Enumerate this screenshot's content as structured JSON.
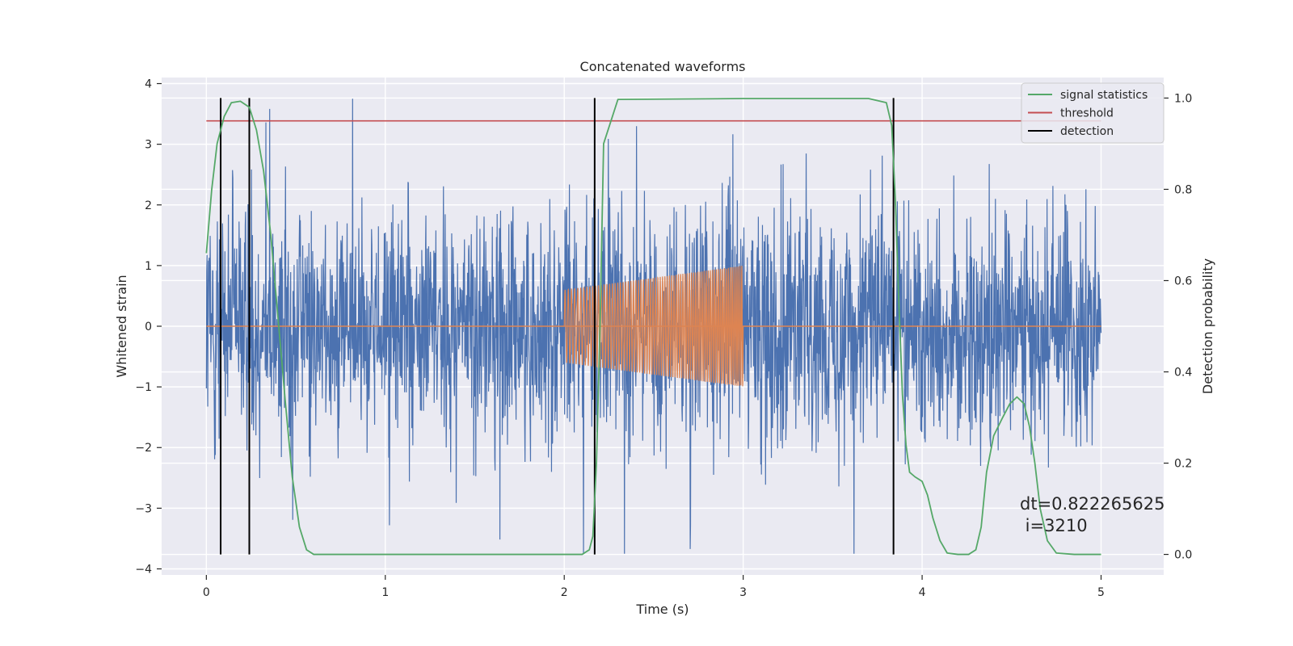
{
  "chart_data": {
    "type": "line",
    "title": "Concatenated waveforms",
    "xlabel": "Time (s)",
    "ylabel": "Whitened strain",
    "y2label": "Detection probability",
    "xlim": [
      -0.25,
      5.35
    ],
    "ylim": [
      -4.1,
      4.1
    ],
    "y2lim": [
      -0.045,
      1.045
    ],
    "x_ticks": [
      0,
      1,
      2,
      3,
      4,
      5
    ],
    "y_ticks": [
      -4,
      -3,
      -2,
      -1,
      0,
      1,
      2,
      3,
      4
    ],
    "y2_ticks": [
      0.0,
      0.2,
      0.4,
      0.6,
      0.8,
      1.0
    ],
    "grid": true,
    "legend_position": "top-right",
    "colors": {
      "strain": "#4c72b0",
      "injection": "#dd8452",
      "statistics": "#55a868",
      "threshold": "#c44e52",
      "detection": "#000000"
    },
    "legend": [
      {
        "label": "signal statistics",
        "color": "#55a868"
      },
      {
        "label": "threshold",
        "color": "#c44e52"
      },
      {
        "label": "detection",
        "color": "#000000"
      }
    ],
    "strain_series": {
      "x_range": [
        0,
        5
      ],
      "approx_envelope": [
        -3.75,
        3.75
      ],
      "typical_band": [
        -0.9,
        0.9
      ]
    },
    "injection_series": {
      "x_range": [
        2.0,
        3.0
      ],
      "amplitude_start": 0.6,
      "amplitude_end": 1.0,
      "baseline": 0
    },
    "threshold": {
      "y2": 0.95,
      "x_range": [
        0,
        5
      ]
    },
    "detections": [
      0.08,
      0.24,
      2.17,
      3.84
    ],
    "signal_statistics": {
      "x": [
        0.0,
        0.03,
        0.06,
        0.1,
        0.14,
        0.19,
        0.24,
        0.28,
        0.32,
        0.36,
        0.4,
        0.44,
        0.48,
        0.52,
        0.56,
        0.6,
        1.0,
        1.5,
        2.0,
        2.1,
        2.14,
        2.16,
        2.18,
        2.2,
        2.22,
        2.3,
        3.0,
        3.7,
        3.8,
        3.83,
        3.85,
        3.87,
        3.89,
        3.91,
        3.93,
        3.96,
        4.0,
        4.03,
        4.06,
        4.1,
        4.14,
        4.2,
        4.26,
        4.3,
        4.33,
        4.36,
        4.4,
        4.45,
        4.49,
        4.53,
        4.57,
        4.6,
        4.63,
        4.66,
        4.7,
        4.75,
        4.85,
        5.0
      ],
      "y": [
        0.66,
        0.8,
        0.9,
        0.96,
        0.99,
        0.993,
        0.98,
        0.93,
        0.84,
        0.7,
        0.52,
        0.34,
        0.17,
        0.06,
        0.01,
        0.0,
        0.0,
        0.0,
        0.0,
        0.0,
        0.01,
        0.04,
        0.2,
        0.5,
        0.9,
        0.997,
        0.999,
        0.999,
        0.99,
        0.94,
        0.78,
        0.55,
        0.35,
        0.24,
        0.18,
        0.17,
        0.16,
        0.13,
        0.08,
        0.03,
        0.003,
        0.0,
        0.0,
        0.01,
        0.06,
        0.18,
        0.26,
        0.3,
        0.33,
        0.345,
        0.33,
        0.28,
        0.2,
        0.1,
        0.03,
        0.003,
        0.0,
        0.0
      ]
    },
    "annotation": "dt=0.822265625\n i=3210"
  }
}
